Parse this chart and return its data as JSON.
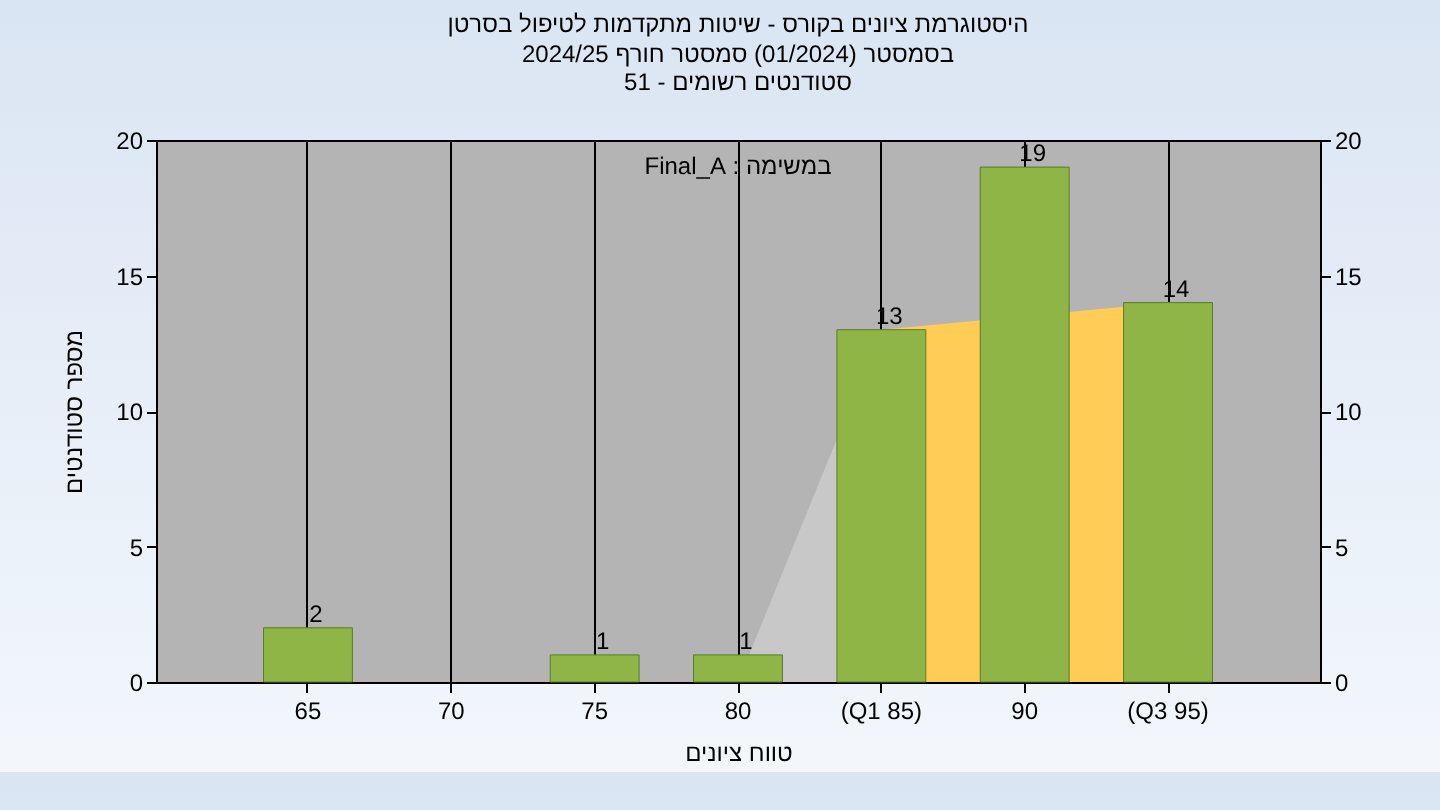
{
  "chart_data": {
    "type": "bar",
    "title": "היסטוגרמת ציונים בקורס - שיטות מתקדמות לטיפול בסרטן",
    "subtitle": "בסמסטר  (01/2024)  סמסטר חורף 2024/25\nסטודנטים רשומים - 51",
    "xlabel": "טווח ציונים",
    "ylabel": "מספר סטודנטים",
    "annotations": [
      "במשימה : Final_A"
    ],
    "categories": [
      "65",
      "70",
      "75",
      "80",
      "(Q1 85)",
      "90",
      "(Q3 95)"
    ],
    "series": [
      {
        "type": "area",
        "color": "#c8c8c8",
        "values": [
          null,
          null,
          null,
          0,
          13,
          null,
          null
        ]
      },
      {
        "type": "area",
        "color": "#ffcc55",
        "values": [
          null,
          null,
          null,
          null,
          13,
          null,
          14
        ]
      },
      {
        "type": "bar",
        "color": "#8fb547",
        "values": [
          2,
          null,
          1,
          1,
          13,
          19,
          14
        ],
        "value_labels": [
          "2",
          null,
          "1",
          "1",
          "13",
          "19",
          "14"
        ]
      }
    ],
    "ylim": [
      0,
      20
    ],
    "yticks": [
      0,
      5,
      10,
      15,
      20
    ],
    "y2lim": [
      0,
      20
    ],
    "y2ticks": [
      0,
      5,
      10,
      15,
      20
    ],
    "grid": "x"
  }
}
